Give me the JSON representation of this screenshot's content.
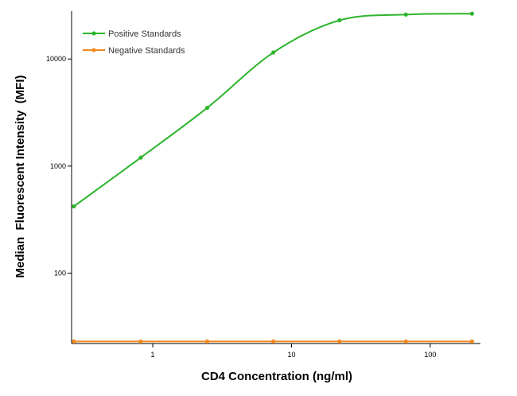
{
  "chart_data": {
    "type": "line",
    "xlabel": "CD4 Concentration (ng/ml)",
    "ylabel": "Median  Fluorescent Intensity  (MFI)",
    "x_scale": "log",
    "y_scale": "log",
    "xlim": [
      0.26,
      230
    ],
    "ylim": [
      22,
      28000
    ],
    "x_ticks": [
      {
        "value": 1,
        "label": "1"
      },
      {
        "value": 10,
        "label": "10"
      },
      {
        "value": 100,
        "label": "100"
      }
    ],
    "y_ticks": [
      {
        "value": 100,
        "label": "100"
      },
      {
        "value": 1000,
        "label": "1000"
      },
      {
        "value": 10000,
        "label": "10000"
      }
    ],
    "legend_position": "top-left",
    "grid": false,
    "series": [
      {
        "name": "Positive Standards",
        "color": "#2db52d",
        "x": [
          0.27,
          0.82,
          2.47,
          7.4,
          22.2,
          66.7,
          200
        ],
        "y": [
          420,
          1200,
          3500,
          11500,
          23000,
          26000,
          26500
        ]
      },
      {
        "name": "Negative Standards",
        "color": "#f28a1e",
        "x": [
          0.27,
          0.82,
          2.47,
          7.4,
          22.2,
          66.7,
          200
        ],
        "y": [
          23,
          23,
          23,
          23,
          23,
          23,
          23
        ]
      }
    ]
  }
}
